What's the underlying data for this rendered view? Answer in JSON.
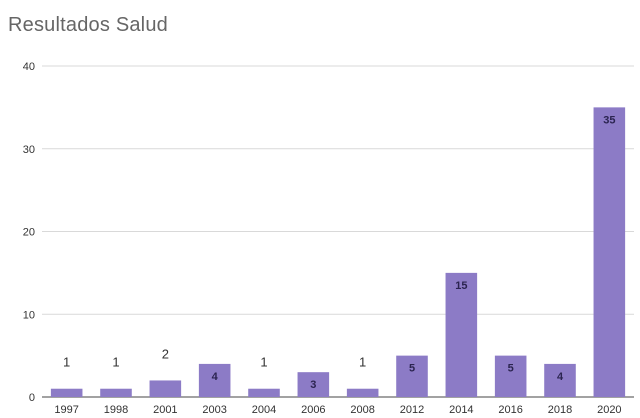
{
  "chart_data": {
    "type": "bar",
    "title": "Resultados Salud",
    "xlabel": "",
    "ylabel": "",
    "categories": [
      "1997",
      "1998",
      "2001",
      "2003",
      "2004",
      "2006",
      "2008",
      "2012",
      "2014",
      "2016",
      "2018",
      "2020"
    ],
    "values": [
      1,
      1,
      2,
      4,
      1,
      3,
      1,
      5,
      15,
      5,
      4,
      35
    ],
    "ylim": [
      0,
      40
    ],
    "yticks": [
      "0",
      "10",
      "20",
      "30",
      "40"
    ],
    "data_labels": [
      "1",
      "1",
      "2",
      "4",
      "1",
      "3",
      "1",
      "5",
      "15",
      "5",
      "4",
      "35"
    ],
    "grid": true,
    "legend": "none",
    "bar_color": "#8c7bc6"
  }
}
